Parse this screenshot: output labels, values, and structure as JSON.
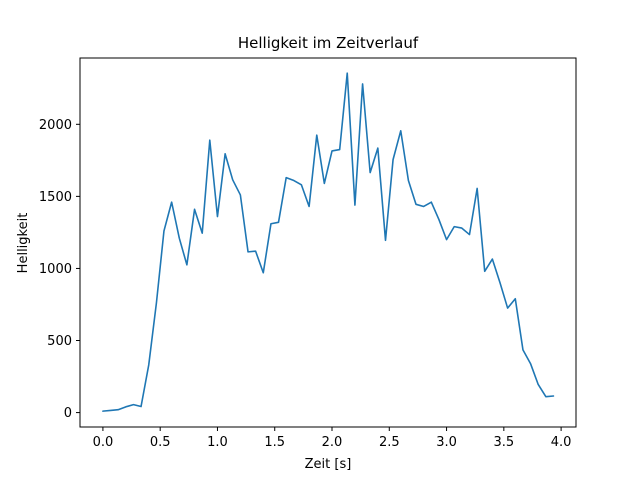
{
  "chart_data": {
    "type": "line",
    "title": "Helligkeit im Zeitverlauf",
    "xlabel": "Zeit [s]",
    "ylabel": "Helligkeit",
    "xlim": [
      -0.2,
      4.13
    ],
    "ylim": [
      -100,
      2460
    ],
    "xticks": [
      0.0,
      0.5,
      1.0,
      1.5,
      2.0,
      2.5,
      3.0,
      3.5,
      4.0
    ],
    "xtick_labels": [
      "0.0",
      "0.5",
      "1.0",
      "1.5",
      "2.0",
      "2.5",
      "3.0",
      "3.5",
      "4.0"
    ],
    "yticks": [
      0,
      500,
      1000,
      1500,
      2000
    ],
    "ytick_labels": [
      "0",
      "500",
      "1000",
      "1500",
      "2000"
    ],
    "grid": false,
    "line_color": "#1f77b4",
    "series": [
      {
        "x": [
          0.0,
          0.067,
          0.133,
          0.2,
          0.267,
          0.333,
          0.4,
          0.467,
          0.533,
          0.6,
          0.667,
          0.733,
          0.8,
          0.867,
          0.933,
          1.0,
          1.067,
          1.133,
          1.2,
          1.267,
          1.333,
          1.4,
          1.467,
          1.533,
          1.6,
          1.667,
          1.733,
          1.8,
          1.867,
          1.933,
          2.0,
          2.067,
          2.133,
          2.2,
          2.267,
          2.333,
          2.4,
          2.467,
          2.533,
          2.6,
          2.667,
          2.733,
          2.8,
          2.867,
          2.933,
          3.0,
          3.067,
          3.133,
          3.2,
          3.267,
          3.333,
          3.4,
          3.467,
          3.533,
          3.6,
          3.667,
          3.733,
          3.8,
          3.867,
          3.933
        ],
        "y": [
          10,
          15,
          20,
          40,
          55,
          42,
          330,
          760,
          1260,
          1460,
          1210,
          1025,
          1410,
          1245,
          1890,
          1360,
          1795,
          1615,
          1510,
          1115,
          1120,
          970,
          1310,
          1320,
          1630,
          1610,
          1580,
          1430,
          1925,
          1590,
          1815,
          1825,
          2355,
          1440,
          2280,
          1665,
          1835,
          1195,
          1755,
          1955,
          1610,
          1445,
          1430,
          1460,
          1340,
          1200,
          1290,
          1280,
          1235,
          1555,
          980,
          1065,
          900,
          725,
          790,
          435,
          340,
          195,
          110,
          115
        ]
      }
    ]
  }
}
